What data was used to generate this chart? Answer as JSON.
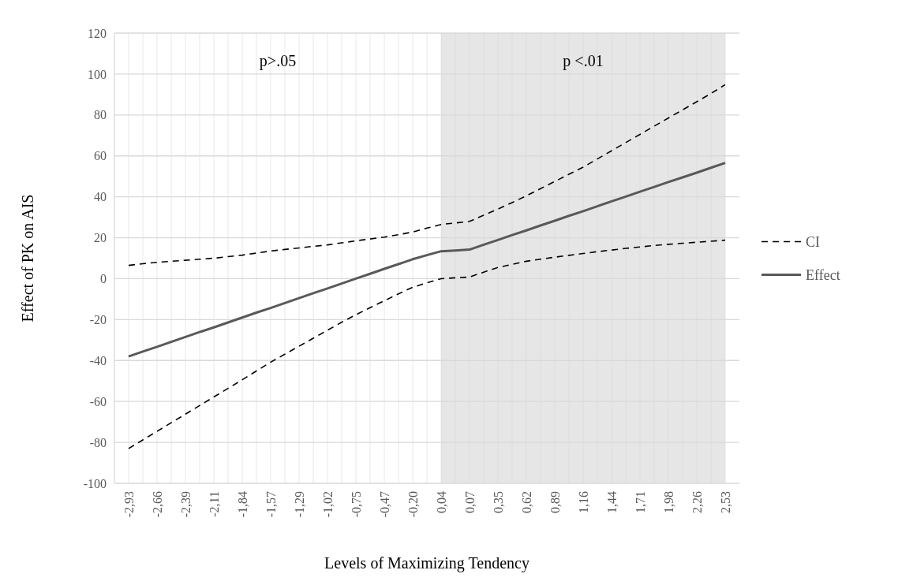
{
  "chart_data": {
    "type": "line",
    "xlabel": "Levels of Maximizing Tendency",
    "ylabel": "Effect of PK on AIS",
    "categories": [
      "-2,93",
      null,
      "-2,66",
      null,
      "-2,39",
      null,
      "-2,11",
      null,
      "-1,84",
      null,
      "-1,57",
      null,
      "-1,29",
      null,
      "-1,02",
      null,
      "-0,75",
      null,
      "-0,47",
      null,
      "-0,20",
      null,
      "0,04",
      null,
      "0,07",
      null,
      "0,35",
      null,
      "0,62",
      null,
      "0,89",
      null,
      "1,16",
      null,
      "1,44",
      null,
      "1,71",
      null,
      "1,98",
      null,
      "2,26",
      null,
      "2,53"
    ],
    "series": [
      {
        "name": "CI",
        "color": "#000000",
        "line_style": "dashed",
        "values": [
          6.5,
          7.3,
          8,
          8.5,
          9,
          9.5,
          10,
          10.8,
          11.5,
          12.5,
          13.5,
          14.3,
          15,
          15.8,
          16.5,
          17.5,
          18.5,
          19.4,
          20.3,
          21.5,
          22.8,
          24.7,
          26.5,
          27.2,
          28,
          31,
          34,
          37.2,
          40.5,
          44,
          47.5,
          51,
          54.5,
          58.5,
          62.5,
          66.5,
          70.5,
          74.5,
          78.5,
          82.5,
          86.5,
          90.5,
          94.8
        ]
      },
      {
        "color": "#000000",
        "line_style": "dashed",
        "values": [
          -83,
          -78.8,
          -74.6,
          -70.4,
          -66.2,
          -62,
          -57.8,
          -53.6,
          -49.4,
          -45.1,
          -40.8,
          -36.9,
          -33,
          -29.1,
          -25.2,
          -21.3,
          -17.6,
          -14.2,
          -10.8,
          -7.4,
          -4.2,
          -2,
          0,
          0.4,
          0.8,
          3.2,
          5.5,
          7,
          8.5,
          9.5,
          10.5,
          11.4,
          12.3,
          13.2,
          14,
          14.8,
          15.5,
          16.2,
          16.8,
          17.3,
          17.8,
          18.3,
          18.8
        ]
      },
      {
        "name": "Effect",
        "color": "#595959",
        "line_style": "solid",
        "values": [
          -38,
          -35.6,
          -33.3,
          -30.9,
          -28.5,
          -26.1,
          -23.8,
          -21.4,
          -19,
          -16.6,
          -14.3,
          -11.9,
          -9.5,
          -7.1,
          -4.8,
          -2.4,
          0,
          2.4,
          4.8,
          7.1,
          9.5,
          11.5,
          13.4,
          13.8,
          14.2,
          16.6,
          18.9,
          21.3,
          23.6,
          26,
          28.3,
          30.7,
          33,
          35.4,
          37.8,
          40.1,
          42.5,
          44.8,
          47.2,
          49.5,
          51.8,
          54.2,
          56.6
        ]
      }
    ],
    "ylim": [
      -100,
      120
    ],
    "yticks": [
      -100,
      -80,
      -60,
      -40,
      -20,
      0,
      20,
      40,
      60,
      80,
      100,
      120
    ],
    "grid": true,
    "legend": "right",
    "bands": [
      {
        "axis": "x",
        "from": "0,04",
        "to": "2,53",
        "label": "p <.01",
        "color": "#e6e6e6"
      }
    ],
    "annotations": [
      "p>.05"
    ]
  }
}
